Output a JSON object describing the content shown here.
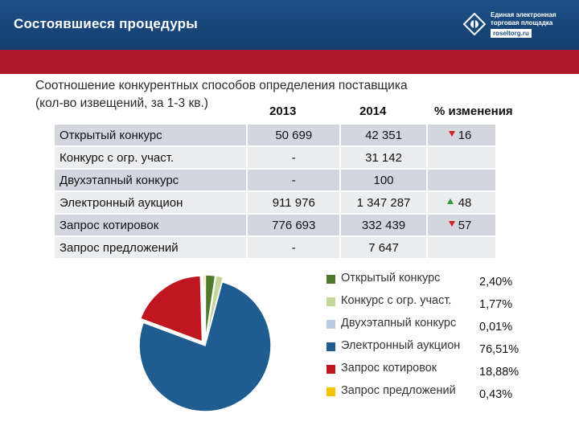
{
  "header": {
    "title": "Состоявшиеся процедуры",
    "logo": {
      "line1": "Единая электронная",
      "line2": "торговая площадка",
      "url": "roseltorg.ru"
    }
  },
  "subtitle": {
    "line1": "Соотношение конкурентных способов определения поставщика",
    "line2": "(кол-во извещений, за 1-3 кв.)"
  },
  "table": {
    "columns": [
      "2013",
      "2014",
      "% изменения"
    ],
    "rows": [
      {
        "name": "Открытый конкурс",
        "v2013": "50 699",
        "v2014": "42 351",
        "change": "16",
        "trend": "down"
      },
      {
        "name": "Конкурс с огр. участ.",
        "v2013": "-",
        "v2014": "31 142",
        "change": "",
        "trend": ""
      },
      {
        "name": "Двухэтапный конкурс",
        "v2013": "-",
        "v2014": "100",
        "change": "",
        "trend": ""
      },
      {
        "name": "Электронный аукцион",
        "v2013": "911 976",
        "v2014": "1 347 287",
        "change": "48",
        "trend": "up"
      },
      {
        "name": "Запрос котировок",
        "v2013": "776 693",
        "v2014": "332 439",
        "change": "57",
        "trend": "down"
      },
      {
        "name": "Запрос предложений",
        "v2013": "-",
        "v2014": "7 647",
        "change": "",
        "trend": ""
      }
    ]
  },
  "chart_data": {
    "type": "pie",
    "title": "",
    "slices": [
      {
        "label": "Открытый конкурс",
        "value": 2.4,
        "display": "2,40%",
        "color": "#4e7a2c"
      },
      {
        "label": "Конкурс с огр. участ.",
        "value": 1.77,
        "display": "1,77%",
        "color": "#c4d79b"
      },
      {
        "label": "Двухэтапный конкурс",
        "value": 0.01,
        "display": "0,01%",
        "color": "#b8cce4"
      },
      {
        "label": "Электронный аукцион",
        "value": 76.51,
        "display": "76,51%",
        "color": "#1f5c8f"
      },
      {
        "label": "Запрос котировок",
        "value": 18.88,
        "display": "18,88%",
        "color": "#c0161f"
      },
      {
        "label": "Запрос предложений",
        "value": 0.43,
        "display": "0,43%",
        "color": "#f5c400"
      }
    ],
    "legend_position": "right"
  }
}
